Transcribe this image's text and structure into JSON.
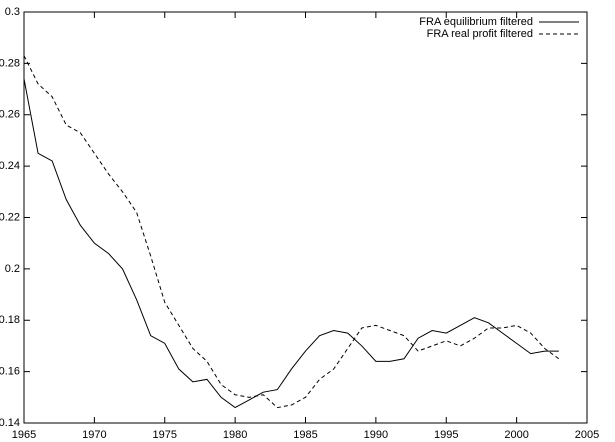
{
  "chart_data": {
    "type": "line",
    "x": [
      1965,
      1966,
      1967,
      1968,
      1969,
      1970,
      1971,
      1972,
      1973,
      1974,
      1975,
      1976,
      1977,
      1978,
      1979,
      1980,
      1981,
      1982,
      1983,
      1984,
      1985,
      1986,
      1987,
      1988,
      1989,
      1990,
      1991,
      1992,
      1993,
      1994,
      1995,
      1996,
      1997,
      1998,
      1999,
      2000,
      2001,
      2002,
      2003
    ],
    "series": [
      {
        "name": "FRA equilibrium filtered",
        "color": "#000000",
        "line_style": "solid",
        "values": [
          0.274,
          0.245,
          0.242,
          0.227,
          0.217,
          0.21,
          0.206,
          0.2,
          0.188,
          0.174,
          0.171,
          0.161,
          0.156,
          0.157,
          0.15,
          0.146,
          0.149,
          0.152,
          0.153,
          0.161,
          0.168,
          0.174,
          0.176,
          0.175,
          0.17,
          0.164,
          0.164,
          0.165,
          0.173,
          0.176,
          0.175,
          0.178,
          0.181,
          0.179,
          0.175,
          0.171,
          0.167,
          0.168,
          0.168
        ]
      },
      {
        "name": "FRA real profit filtered",
        "color": "#000000",
        "line_style": "dashed",
        "values": [
          0.283,
          0.272,
          0.267,
          0.256,
          0.253,
          0.245,
          0.237,
          0.23,
          0.222,
          0.205,
          0.187,
          0.178,
          0.169,
          0.164,
          0.155,
          0.151,
          0.15,
          0.151,
          0.146,
          0.147,
          0.15,
          0.157,
          0.161,
          0.169,
          0.177,
          0.178,
          0.176,
          0.174,
          0.168,
          0.17,
          0.172,
          0.17,
          0.173,
          0.177,
          0.177,
          0.178,
          0.175,
          0.169,
          0.165
        ]
      }
    ],
    "xlim": [
      1965,
      2005
    ],
    "xticks": [
      1965,
      1970,
      1975,
      1980,
      1985,
      1990,
      1995,
      2000,
      2005
    ],
    "ylim": [
      0.14,
      0.3
    ],
    "yticks": [
      0.14,
      0.16,
      0.18,
      0.2,
      0.22,
      0.24,
      0.26,
      0.28,
      0.3
    ],
    "grid": false,
    "legend": "top-right"
  }
}
